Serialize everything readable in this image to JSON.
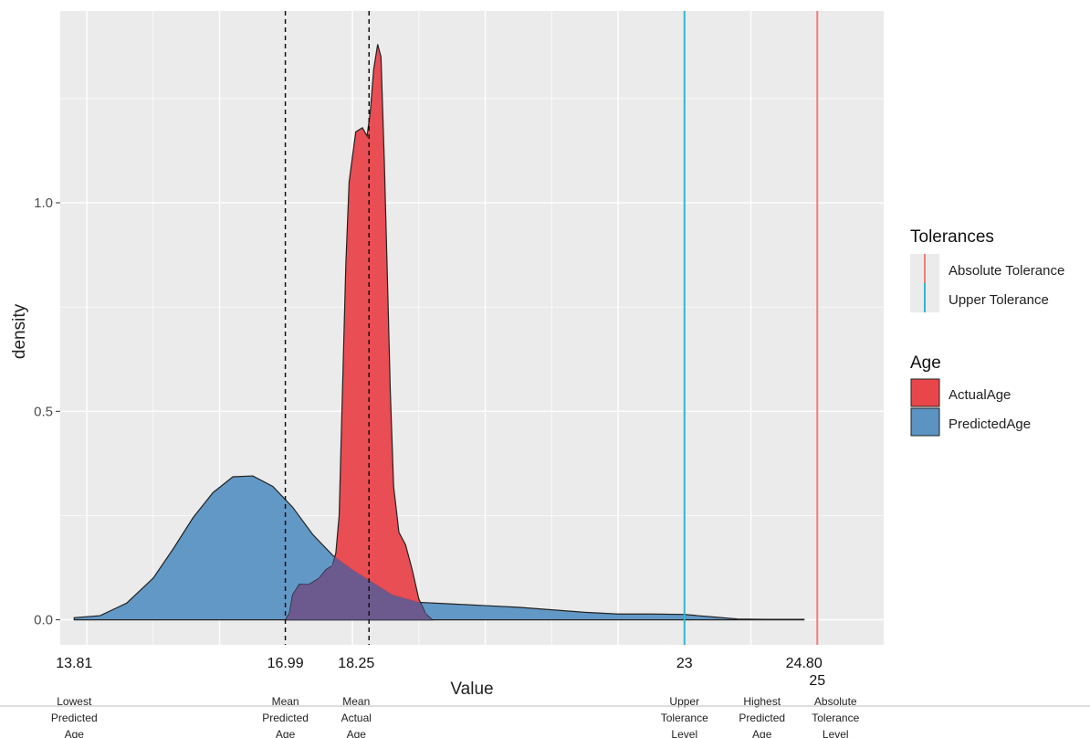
{
  "chart_data": {
    "type": "area",
    "xlabel": "Value",
    "ylabel": "density",
    "xlim": [
      13.6,
      26.0
    ],
    "ylim": [
      -0.06,
      1.46
    ],
    "y_ticks": [
      0.0,
      0.5,
      1.0
    ],
    "y_tick_labels": [
      "0.0",
      "0.5",
      "1.0"
    ],
    "grid": true,
    "legend_placement": "right",
    "series": [
      {
        "name": "PredictedAge",
        "color": "#5b93c3",
        "x": [
          13.81,
          14.2,
          14.6,
          15.0,
          15.3,
          15.6,
          15.9,
          16.2,
          16.5,
          16.8,
          17.1,
          17.4,
          17.7,
          18.0,
          18.3,
          18.6,
          19.0,
          19.5,
          20.0,
          20.5,
          21.0,
          21.5,
          22.0,
          22.5,
          23.0,
          23.2,
          23.5,
          23.8,
          24.2,
          24.8
        ],
        "y": [
          0.005,
          0.01,
          0.04,
          0.1,
          0.17,
          0.245,
          0.305,
          0.343,
          0.345,
          0.32,
          0.27,
          0.205,
          0.155,
          0.12,
          0.09,
          0.06,
          0.042,
          0.038,
          0.034,
          0.03,
          0.024,
          0.018,
          0.014,
          0.014,
          0.013,
          0.01,
          0.006,
          0.002,
          0.001,
          0.001
        ]
      },
      {
        "name": "ActualAge",
        "color": "#e8464b",
        "x": [
          16.99,
          17.05,
          17.1,
          17.2,
          17.35,
          17.5,
          17.6,
          17.7,
          17.75,
          17.8,
          17.85,
          17.9,
          17.95,
          18.05,
          18.15,
          18.22,
          18.27,
          18.32,
          18.38,
          18.43,
          18.48,
          18.53,
          18.57,
          18.62,
          18.7,
          18.8,
          18.9,
          19.0,
          19.1,
          19.2
        ],
        "y": [
          0.0,
          0.015,
          0.06,
          0.085,
          0.085,
          0.1,
          0.12,
          0.13,
          0.16,
          0.25,
          0.55,
          0.85,
          1.05,
          1.17,
          1.18,
          1.16,
          1.22,
          1.32,
          1.38,
          1.35,
          1.1,
          0.8,
          0.55,
          0.32,
          0.21,
          0.18,
          0.12,
          0.05,
          0.015,
          0.0
        ]
      }
    ],
    "reference_lines": [
      {
        "name": "Mean Predicted Age",
        "x": 16.99,
        "style": "dashed",
        "color": "#111111"
      },
      {
        "name": "Mean Actual Age",
        "x": 18.25,
        "style": "dashed",
        "color": "#111111"
      },
      {
        "name": "Upper Tolerance",
        "x": 23,
        "style": "solid",
        "color": "#2eb8c8"
      },
      {
        "name": "Absolute Tolerance",
        "x": 25,
        "style": "solid",
        "color": "#ef7f7b"
      }
    ]
  },
  "legend": {
    "tolerances": {
      "title": "Tolerances",
      "items": [
        {
          "label": "Absolute Tolerance",
          "color": "#ef7f7b"
        },
        {
          "label": "Upper Tolerance",
          "color": "#2eb8c8"
        }
      ]
    },
    "age": {
      "title": "Age",
      "items": [
        {
          "label": "ActualAge",
          "color": "#e8464b"
        },
        {
          "label": "PredictedAge",
          "color": "#5b93c3"
        }
      ]
    }
  },
  "annotations": [
    {
      "value": "13.81",
      "x": 13.81,
      "lines": [
        "Lowest",
        "Predicted",
        "Age"
      ]
    },
    {
      "value": "16.99",
      "x": 16.99,
      "lines": [
        "Mean",
        "Predicted",
        "Age"
      ]
    },
    {
      "value": "18.25",
      "x": 18.25,
      "lines": [
        "Mean",
        "Actual",
        "Age"
      ]
    },
    {
      "value": "23",
      "x": 23,
      "lines": [
        "Upper",
        "Tolerance",
        "Level"
      ]
    },
    {
      "value": "24.80",
      "x": 24.8,
      "lines": [
        "Highest",
        "Predicted",
        "Age"
      ]
    },
    {
      "value": "25",
      "x": 25,
      "lines": [
        "Absolute",
        "Tolerance",
        "Level"
      ]
    }
  ]
}
